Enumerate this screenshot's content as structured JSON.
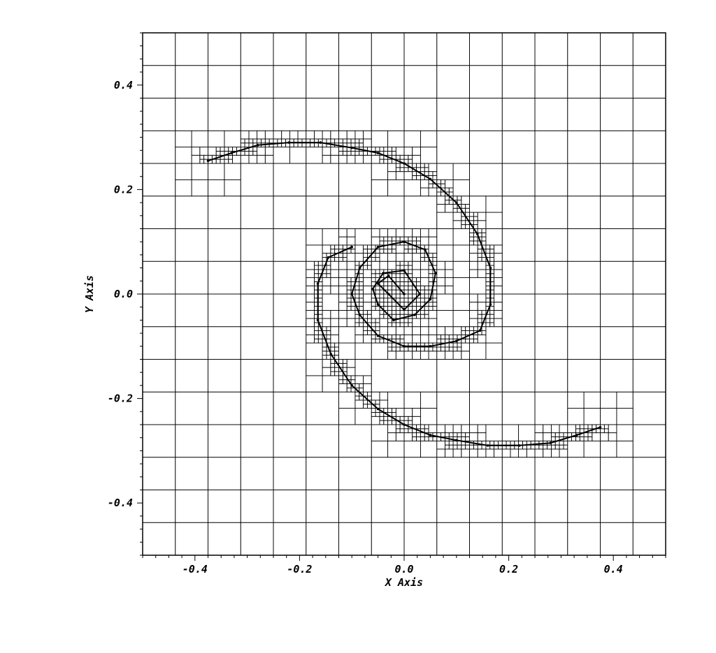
{
  "chart_data": {
    "type": "scatter",
    "title": "",
    "xlabel": "X Axis",
    "ylabel": "Y Axis",
    "xlim": [
      -0.5,
      0.5
    ],
    "ylim": [
      -0.5,
      0.5
    ],
    "x_ticks": [
      -0.4,
      -0.2,
      0.0,
      0.2,
      0.4
    ],
    "x_tick_labels": [
      "-0.4",
      "-0.2",
      "0.0",
      "0.2",
      "0.4"
    ],
    "y_ticks": [
      -0.4,
      -0.2,
      0.0,
      0.2,
      0.4
    ],
    "y_tick_labels": [
      "-0.4",
      "-0.2",
      "0.0",
      "0.2",
      "0.4"
    ],
    "grid": true,
    "mesh": {
      "base_cell_size": 0.0625,
      "refinement": "adaptive, refined along the interface curve"
    },
    "series": [
      {
        "style": "dotted curve",
        "spiral_center": [
          0.0,
          0.0
        ],
        "x": [
          -0.375,
          -0.33,
          -0.28,
          -0.22,
          -0.16,
          -0.1,
          -0.05,
          0.0,
          0.05,
          0.1,
          0.14,
          0.165,
          0.165,
          0.145,
          0.1,
          0.05,
          0.0,
          -0.05,
          -0.085,
          -0.1,
          -0.085,
          -0.05,
          0.0,
          0.04,
          0.06,
          0.05,
          0.02,
          -0.02,
          -0.05,
          -0.06,
          -0.04,
          0.0,
          0.03,
          0.0,
          -0.03,
          -0.05,
          -0.03,
          0.0
        ],
        "y": [
          0.255,
          0.27,
          0.285,
          0.29,
          0.29,
          0.28,
          0.27,
          0.25,
          0.22,
          0.175,
          0.115,
          0.05,
          -0.02,
          -0.07,
          -0.09,
          -0.1,
          -0.1,
          -0.08,
          -0.04,
          0.0,
          0.05,
          0.09,
          0.1,
          0.085,
          0.04,
          -0.01,
          -0.04,
          -0.05,
          -0.02,
          0.01,
          0.04,
          0.045,
          0.0,
          -0.03,
          0.0,
          0.02,
          0.035,
          0.0
        ]
      },
      {
        "style": "dotted curve",
        "x": [
          0.375,
          0.33,
          0.28,
          0.22,
          0.16,
          0.1,
          0.05,
          0.0,
          -0.05,
          -0.1,
          -0.14,
          -0.165,
          -0.165,
          -0.145,
          -0.1
        ],
        "y": [
          -0.255,
          -0.27,
          -0.285,
          -0.29,
          -0.29,
          -0.28,
          -0.27,
          -0.25,
          -0.22,
          -0.175,
          -0.115,
          -0.05,
          0.02,
          0.07,
          0.09
        ]
      }
    ]
  }
}
